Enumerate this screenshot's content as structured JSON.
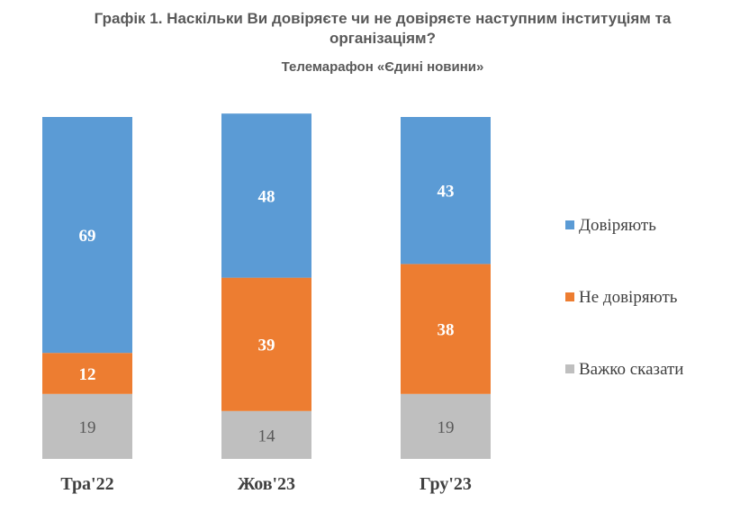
{
  "chart_data": {
    "type": "bar",
    "stacked": true,
    "title": "Графік 1. Наскільки Ви довіряєте чи не довіряєте наступним інституціям та організаціям?",
    "subtitle": "Телемарафон «Єдині новини»",
    "categories": [
      "Тра'22",
      "Жов'23",
      "Гру'23"
    ],
    "series": [
      {
        "name": "Важко сказати",
        "color": "#BFBFBF",
        "values": [
          19,
          14,
          19
        ]
      },
      {
        "name": "Не довіряють",
        "color": "#ED7D31",
        "values": [
          12,
          39,
          38
        ]
      },
      {
        "name": "Довіряють",
        "color": "#5B9BD5",
        "values": [
          69,
          48,
          43
        ]
      }
    ],
    "legend": {
      "placement": "right",
      "order": [
        "Довіряють",
        "Не довіряють",
        "Важко сказати"
      ]
    },
    "ylim": [
      0,
      100
    ],
    "xlabel": "",
    "ylabel": ""
  }
}
